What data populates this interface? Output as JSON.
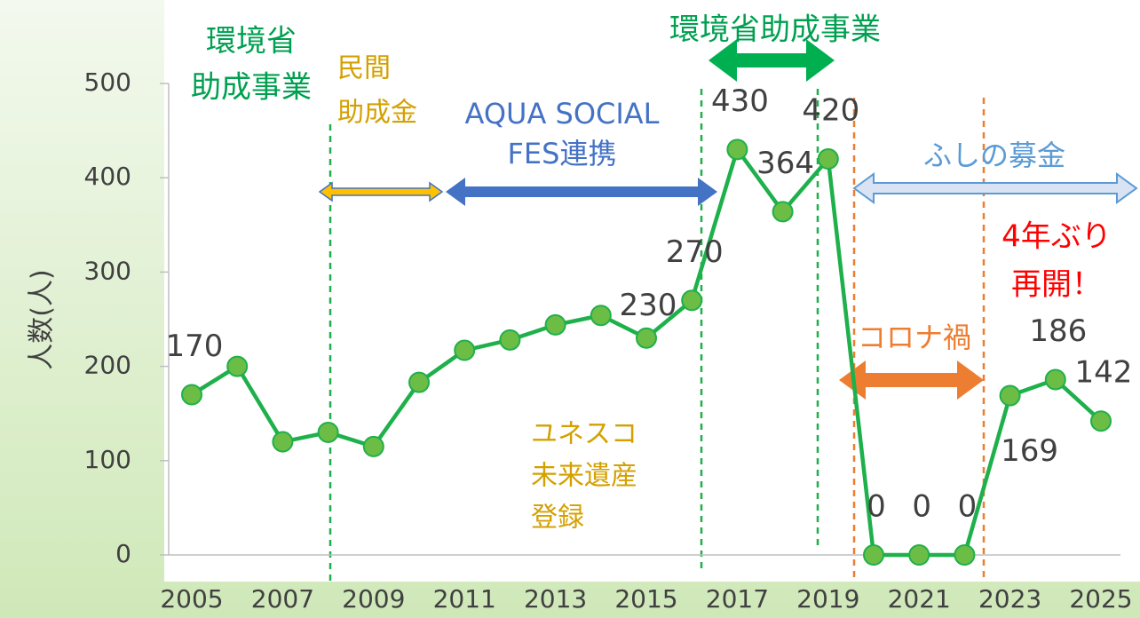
{
  "chart_data": {
    "type": "line",
    "y_label": "人数(人)",
    "x": [
      2005,
      2006,
      2007,
      2008,
      2009,
      2010,
      2011,
      2012,
      2013,
      2014,
      2015,
      2016,
      2017,
      2018,
      2019,
      2020,
      2021,
      2022,
      2023,
      2024,
      2025
    ],
    "values": [
      170,
      200,
      120,
      130,
      115,
      183,
      217,
      228,
      244,
      254,
      230,
      270,
      430,
      364,
      420,
      0,
      0,
      0,
      169,
      186,
      142
    ],
    "value_labels": [
      "170",
      null,
      null,
      null,
      null,
      null,
      null,
      null,
      null,
      null,
      "230",
      "270",
      "430",
      "364",
      "420",
      "0",
      "0",
      "0",
      "169",
      "186",
      "142"
    ],
    "color": "#1eb04a",
    "marker_color": "#6cbd45",
    "xlim": [
      2005,
      2025
    ],
    "xticks": [
      2005,
      2007,
      2009,
      2011,
      2013,
      2015,
      2017,
      2019,
      2021,
      2023,
      2025
    ],
    "ylim": [
      0,
      500
    ],
    "yticks": [
      0,
      100,
      200,
      300,
      400,
      500
    ],
    "annotations": [
      {
        "lines": [
          "環境省",
          "助成事業"
        ],
        "color": "#00a050"
      },
      {
        "lines": [
          "民間",
          "助成金"
        ],
        "color": "#d4a000"
      },
      {
        "lines": [
          "AQUA SOCIAL",
          "FES連携"
        ],
        "color": "#4472c4"
      },
      {
        "lines": [
          "環境省助成事業"
        ],
        "color": "#00a050"
      },
      {
        "lines": [
          "ふしの募金"
        ],
        "color": "#5b9bd5"
      },
      {
        "lines": [
          "4年ぶり",
          "再開！"
        ],
        "color": "#ff0000"
      },
      {
        "lines": [
          "コロナ禍"
        ],
        "color": "#ed7d31"
      },
      {
        "lines": [
          "ユネスコ",
          "未来遺産",
          "登録"
        ],
        "color": "#d4a000"
      }
    ]
  }
}
